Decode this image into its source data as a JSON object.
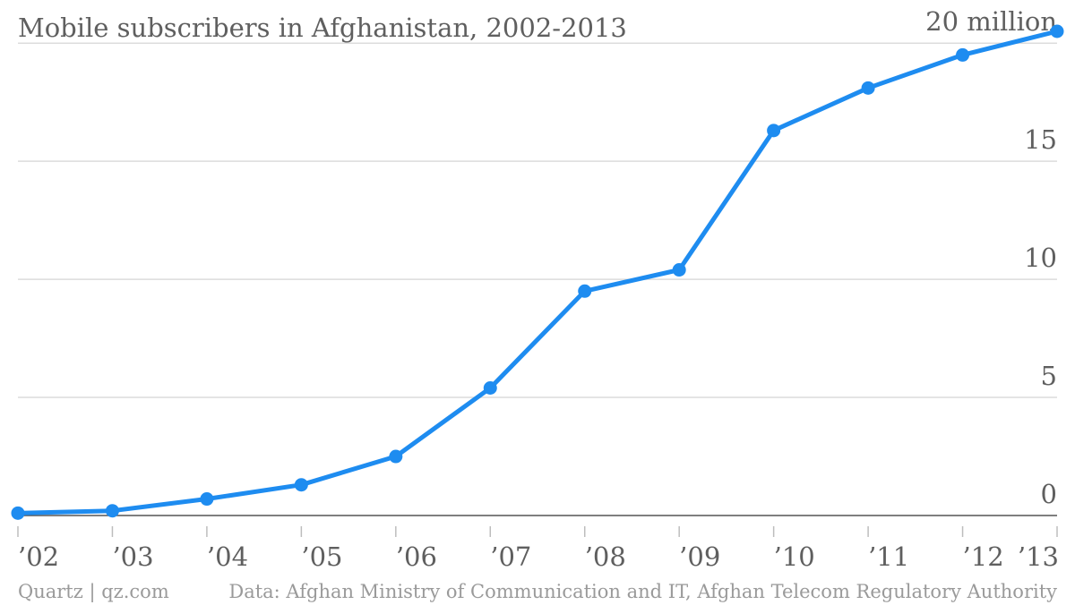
{
  "chart_data": {
    "type": "line",
    "title": "Mobile subscribers in Afghanistan, 2002-2013",
    "x": [
      "’02",
      "’03",
      "’04",
      "’05",
      "’06",
      "’07",
      "’08",
      "’09",
      "’10",
      "’11",
      "’12",
      "’13"
    ],
    "series": [
      {
        "values": [
          0.1,
          0.2,
          0.7,
          1.3,
          2.5,
          5.4,
          9.5,
          10.4,
          16.3,
          18.1,
          19.5,
          20.5
        ],
        "color": "#1e8cf0"
      }
    ],
    "ylim": [
      0,
      20.5
    ],
    "y_ticks": [
      {
        "value": 0,
        "label": "0"
      },
      {
        "value": 5,
        "label": "5"
      },
      {
        "value": 10,
        "label": "10"
      },
      {
        "value": 15,
        "label": "15"
      },
      {
        "value": 20,
        "label": "20 million"
      }
    ],
    "grid": true,
    "y_axis_side": "right",
    "xlabel": "",
    "ylabel": ""
  },
  "footer": {
    "source_left": "Quartz | qz.com",
    "source_right": "Data: Afghan Ministry of Communication and IT, Afghan Telecom Regulatory Authority"
  }
}
